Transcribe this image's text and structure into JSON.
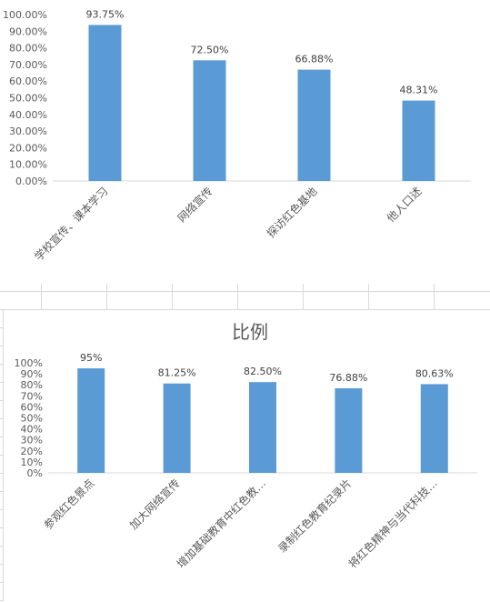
{
  "chart_data": [
    {
      "type": "bar",
      "title": "",
      "categories": [
        "学校宣传、课本学习",
        "网络宣传",
        "探访红色基地",
        "他人口述"
      ],
      "values": [
        93.75,
        72.5,
        66.88,
        48.31
      ],
      "data_labels": [
        "93.75%",
        "72.50%",
        "66.88%",
        "48.31%"
      ],
      "y_ticks": [
        "0.00%",
        "10.00%",
        "20.00%",
        "30.00%",
        "40.00%",
        "50.00%",
        "60.00%",
        "70.00%",
        "80.00%",
        "90.00%",
        "100.00%"
      ],
      "ylim": [
        0,
        100
      ],
      "xlabel": "",
      "ylabel": "",
      "grid": false,
      "bar_color": "#5b9bd5"
    },
    {
      "type": "bar",
      "title": "比例",
      "categories": [
        "参观红色景点",
        "加大网络宣传",
        "增加基础教育中红色教…",
        "录制红色教育纪录片",
        "将红色精神与当代科技…"
      ],
      "values": [
        95,
        81.25,
        82.5,
        76.88,
        80.63
      ],
      "data_labels": [
        "95%",
        "81.25%",
        "82.50%",
        "76.88%",
        "80.63%"
      ],
      "y_ticks": [
        "0%",
        "10%",
        "20%",
        "30%",
        "40%",
        "50%",
        "60%",
        "70%",
        "80%",
        "90%",
        "100%"
      ],
      "ylim": [
        0,
        100
      ],
      "xlabel": "",
      "ylabel": "",
      "grid": false,
      "bar_color": "#5b9bd5"
    }
  ]
}
